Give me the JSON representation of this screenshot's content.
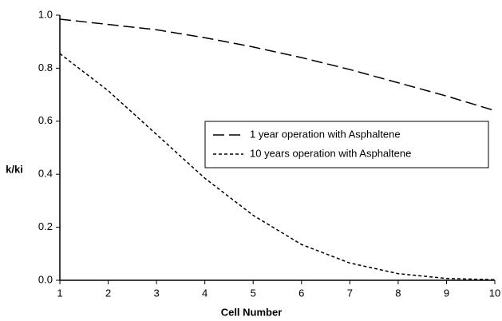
{
  "chart_data": {
    "type": "line",
    "xlabel": "Cell Number",
    "ylabel": "k/ki",
    "x": [
      1,
      2,
      3,
      4,
      5,
      6,
      7,
      8,
      9,
      10
    ],
    "series": [
      {
        "name": "1 year operation with Asphaltene",
        "color": "#000000",
        "dash": "long",
        "values": [
          0.985,
          0.965,
          0.945,
          0.915,
          0.88,
          0.84,
          0.795,
          0.745,
          0.695,
          0.64
        ]
      },
      {
        "name": "10 years operation with Asphaltene",
        "color": "#000000",
        "dash": "short",
        "values": [
          0.855,
          0.715,
          0.55,
          0.385,
          0.245,
          0.135,
          0.065,
          0.025,
          0.007,
          0.002
        ]
      }
    ],
    "xlim": [
      1,
      10
    ],
    "xticks": [
      1,
      2,
      3,
      4,
      5,
      6,
      7,
      8,
      9,
      10
    ],
    "ylim": [
      0,
      1
    ],
    "yticks": [
      {
        "value": 0,
        "label": "0.0"
      },
      0.2,
      0.4,
      0.6,
      0.8,
      {
        "value": 1,
        "label": "1.0"
      }
    ],
    "grid": false,
    "legend": "right"
  }
}
